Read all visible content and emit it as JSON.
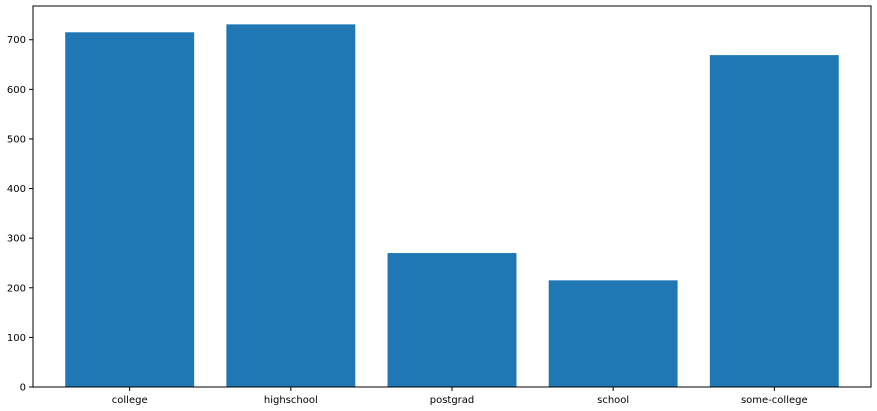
{
  "chart_data": {
    "type": "bar",
    "title": "",
    "xlabel": "",
    "ylabel": "",
    "categories": [
      "college",
      "highschool",
      "postgrad",
      "school",
      "some-college"
    ],
    "values": [
      715,
      731,
      270,
      215,
      669
    ],
    "ylim": [
      0,
      768
    ],
    "yticks": [
      0,
      100,
      200,
      300,
      400,
      500,
      600,
      700
    ],
    "ytick_labels": [
      "0",
      "100",
      "200",
      "300",
      "400",
      "500",
      "600",
      "700"
    ],
    "grid": false,
    "bar_color": "#1f77b4"
  }
}
